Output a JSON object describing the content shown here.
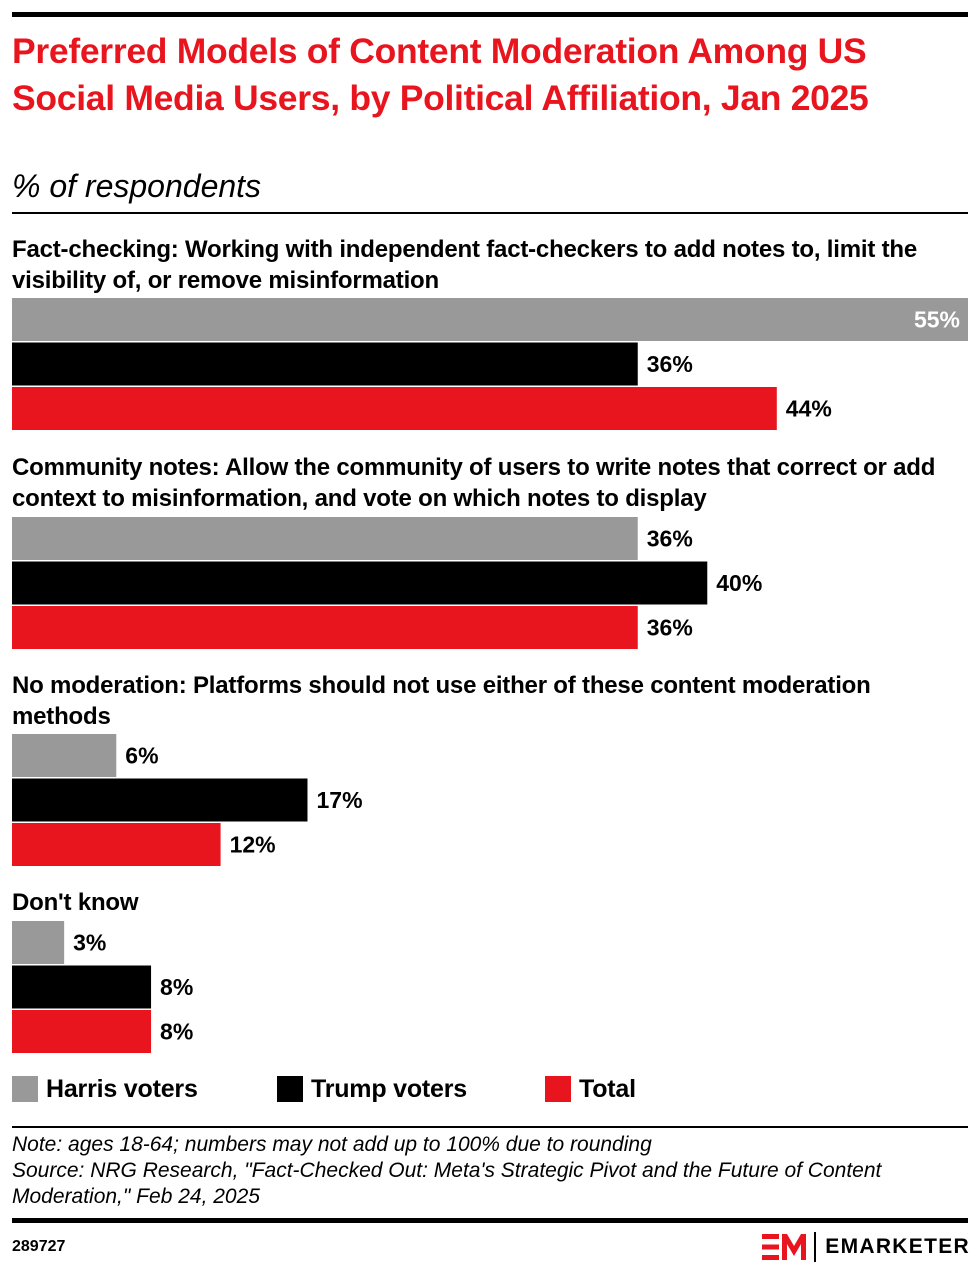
{
  "header": {
    "title": "Preferred Models of Content Moderation Among US Social Media Users, by Political Affiliation, Jan 2025",
    "subtitle": "% of respondents"
  },
  "colors": {
    "harris": "#999999",
    "trump": "#000000",
    "total": "#e8141e",
    "title": "#e8141e"
  },
  "chart_data": {
    "type": "bar",
    "orientation": "horizontal",
    "title": "Preferred Models of Content Moderation Among US Social Media Users, by Political Affiliation, Jan 2025",
    "subtitle": "% of respondents",
    "value_suffix": "%",
    "xlim": [
      0,
      55
    ],
    "grid": false,
    "legend_position": "bottom",
    "categories": [
      "Fact-checking: Working with independent fact-checkers to add notes to, limit the visibility of, or remove misinformation",
      "Community notes: Allow the community of users to write notes that correct or add context to misinformation, and vote on which notes to display",
      "No moderation: Platforms should not use either of these content moderation methods",
      "Don't know"
    ],
    "series": [
      {
        "name": "Harris voters",
        "color": "#999999",
        "values": [
          55,
          36,
          6,
          3
        ]
      },
      {
        "name": "Trump voters",
        "color": "#000000",
        "values": [
          36,
          40,
          17,
          8
        ]
      },
      {
        "name": "Total",
        "color": "#e8141e",
        "values": [
          44,
          36,
          12,
          8
        ]
      }
    ]
  },
  "footer": {
    "note": "Note: ages 18-64; numbers may not add up to 100% due to rounding",
    "source": "Source: NRG Research, \"Fact-Checked Out: Meta's Strategic Pivot and the Future of Content Moderation,\" Feb 24, 2025",
    "chart_id": "289727",
    "brand": "EMARKETER"
  }
}
